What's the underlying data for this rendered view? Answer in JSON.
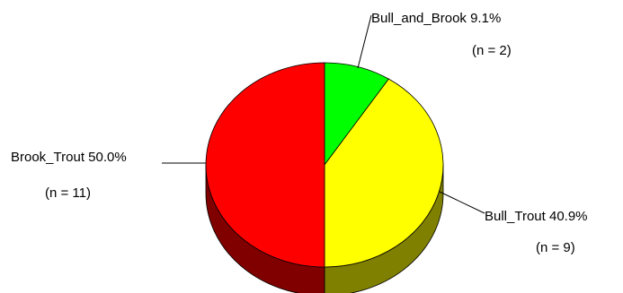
{
  "chart_data": {
    "type": "pie",
    "title": "",
    "three_d": true,
    "slices": [
      {
        "label": "Bull_and_Brook",
        "percent_text": "9.1%",
        "count_text": "(n = 2)",
        "value": 2,
        "color": "#00ff00",
        "side_color": "#008000"
      },
      {
        "label": "Bull_Trout",
        "percent_text": "40.9%",
        "count_text": "(n = 9)",
        "value": 9,
        "color": "#ffff00",
        "side_color": "#808000"
      },
      {
        "label": "Brook_Trout",
        "percent_text": "50.0%",
        "count_text": "(n = 11)",
        "value": 11,
        "color": "#ff0000",
        "side_color": "#800000"
      }
    ]
  }
}
